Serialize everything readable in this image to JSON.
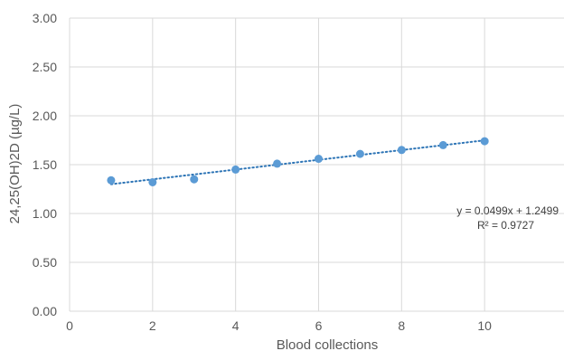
{
  "chart_data": {
    "type": "scatter",
    "xlabel": "Blood collections",
    "ylabel": "24,25(OH)2D (µg/L)",
    "xlim": [
      0,
      12
    ],
    "ylim": [
      0,
      3
    ],
    "x_ticks": [
      0,
      2,
      4,
      6,
      8,
      10
    ],
    "y_ticks": [
      "0.00",
      "0.50",
      "1.00",
      "1.50",
      "2.00",
      "2.50",
      "3.00"
    ],
    "grid": true,
    "legend": "none",
    "series": [
      {
        "x": [
          1,
          2,
          3,
          4,
          5,
          6,
          7,
          8,
          9,
          10
        ],
        "y": [
          1.34,
          1.32,
          1.35,
          1.45,
          1.51,
          1.56,
          1.61,
          1.65,
          1.7,
          1.74
        ],
        "color": "#5b9bd5"
      }
    ],
    "trendline": {
      "type": "linear",
      "slope": 0.0499,
      "intercept": 1.2499,
      "x_range": [
        1,
        10
      ],
      "color": "#2e75b6",
      "style": "dotted",
      "equation_label": "y = 0.0499x + 1.2499",
      "r2_label": "R² = 0.9727"
    },
    "colors": {
      "grid": "#d9d9d9",
      "text": "#595959"
    }
  }
}
